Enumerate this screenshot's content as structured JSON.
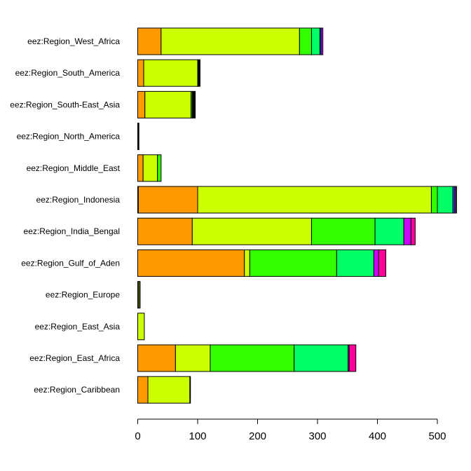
{
  "chart_data": {
    "type": "bar",
    "orientation": "horizontal",
    "stacked": true,
    "title": "",
    "xlabel": "",
    "ylabel": "",
    "xlim": [
      0,
      535
    ],
    "x_ticks": [
      0,
      100,
      200,
      300,
      400,
      500
    ],
    "grid": false,
    "legend": "none",
    "categories": [
      "eez:Region_West_Africa",
      "eez:Region_South_America",
      "eez:Region_South-East_Asia",
      "eez:Region_North_America",
      "eez:Region_Middle_East",
      "eez:Region_Indonesia",
      "eez:Region_India_Bengal",
      "eez:Region_Gulf_of_Aden",
      "eez:Region_Europe",
      "eez:Region_East_Asia",
      "eez:Region_East_Africa",
      "eez:Region_Caribbean"
    ],
    "series": [
      {
        "color": "#000000",
        "values": [
          0,
          0,
          0,
          0,
          0,
          1,
          0,
          0,
          0,
          0,
          0,
          0
        ]
      },
      {
        "color": "#FF9900",
        "values": [
          39,
          10,
          12,
          0,
          9,
          99,
          91,
          178,
          1,
          0,
          63,
          17
        ]
      },
      {
        "color": "#CCFF00",
        "values": [
          231,
          90,
          77,
          0,
          24,
          390,
          199,
          9,
          2,
          11,
          58,
          70
        ]
      },
      {
        "color": "#33FF00",
        "values": [
          20,
          0,
          2,
          0,
          6,
          10,
          106,
          145,
          0,
          0,
          140,
          0
        ]
      },
      {
        "color": "#00FF66",
        "values": [
          14,
          0,
          0,
          0,
          0,
          26,
          48,
          62,
          0,
          0,
          90,
          0
        ]
      },
      {
        "color": "#0066FF",
        "values": [
          2,
          0,
          0,
          0,
          0,
          3,
          0,
          0,
          0,
          0,
          0,
          0
        ]
      },
      {
        "color": "#CC00FF",
        "values": [
          3,
          0,
          0,
          0,
          0,
          2,
          12,
          8,
          0,
          0,
          2,
          0
        ]
      },
      {
        "color": "#FF0099",
        "values": [
          0,
          0,
          0,
          0,
          0,
          0,
          7,
          12,
          0,
          0,
          11,
          0
        ]
      },
      {
        "color": "#000000",
        "values": [
          0,
          4,
          5,
          2,
          0,
          1,
          0,
          0,
          1,
          0,
          0,
          1
        ]
      }
    ]
  }
}
